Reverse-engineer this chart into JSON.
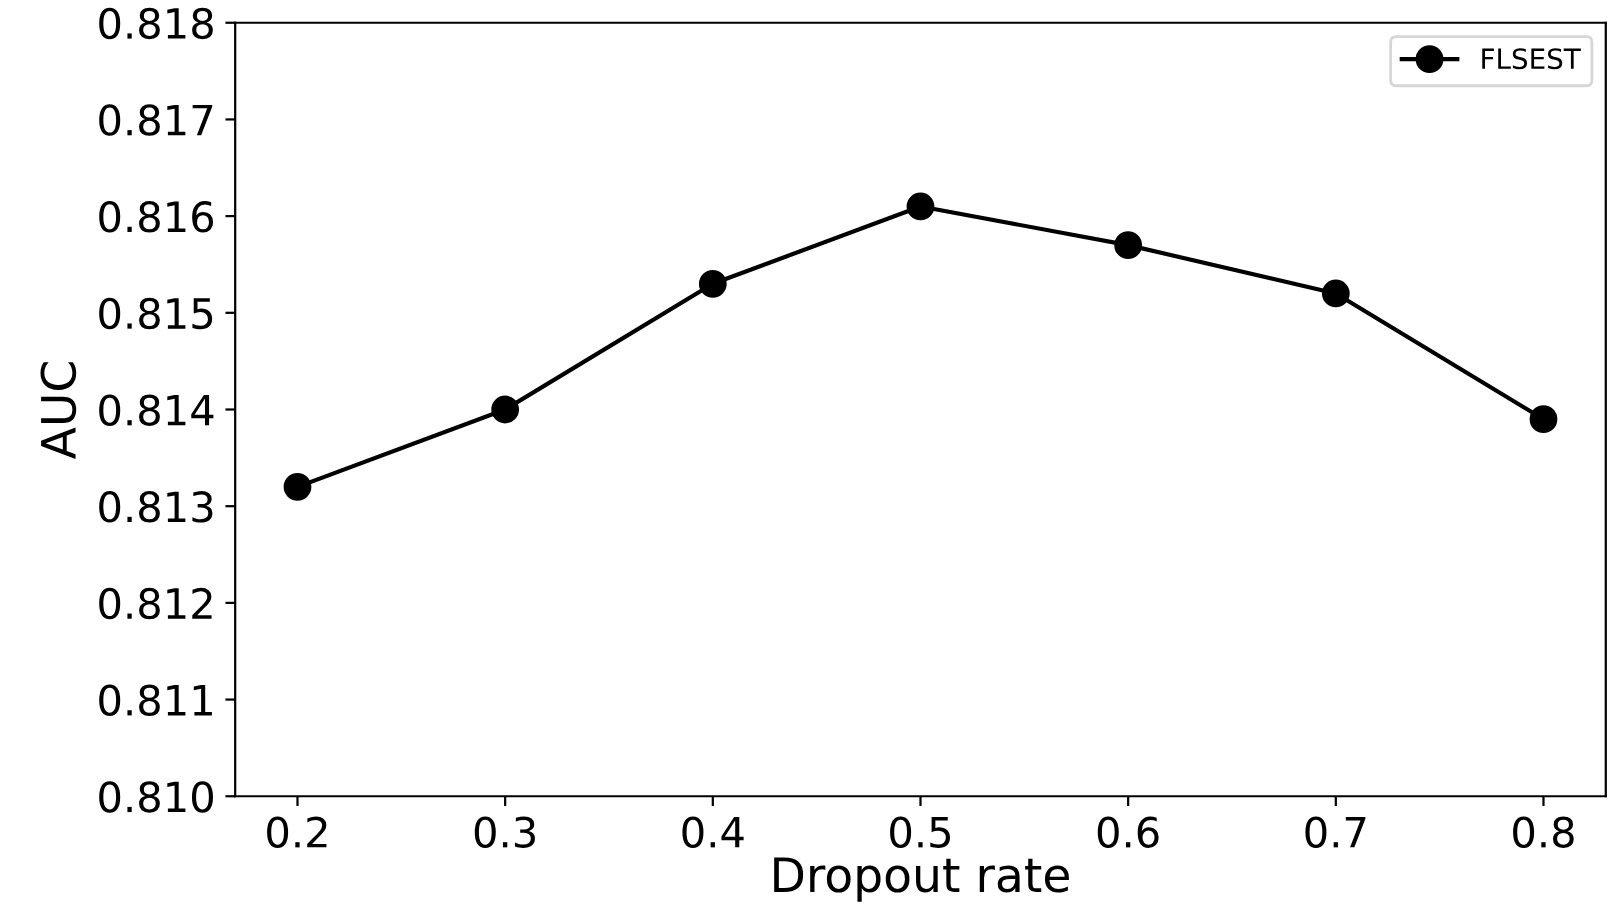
{
  "chart_data": {
    "type": "line",
    "xlabel": "Dropout rate",
    "ylabel": "AUC",
    "x": [
      0.2,
      0.3,
      0.4,
      0.5,
      0.6,
      0.7,
      0.8
    ],
    "series": [
      {
        "name": "FLSEST",
        "color": "#000000",
        "values": [
          0.8132,
          0.814,
          0.8153,
          0.8161,
          0.8157,
          0.8152,
          0.8139
        ]
      }
    ],
    "xlim": [
      0.17,
      0.83
    ],
    "xticks": [
      0.2,
      0.3,
      0.4,
      0.5,
      0.6,
      0.7,
      0.8
    ],
    "ylim": [
      0.81,
      0.818
    ],
    "yticks": [
      {
        "value": 0.81,
        "label": "0.810"
      },
      0.811,
      0.812,
      0.813,
      0.814,
      0.815,
      0.816,
      0.817,
      0.818
    ],
    "marker": "circle",
    "line_style": "solid",
    "legend": "top right",
    "grid": false
  }
}
